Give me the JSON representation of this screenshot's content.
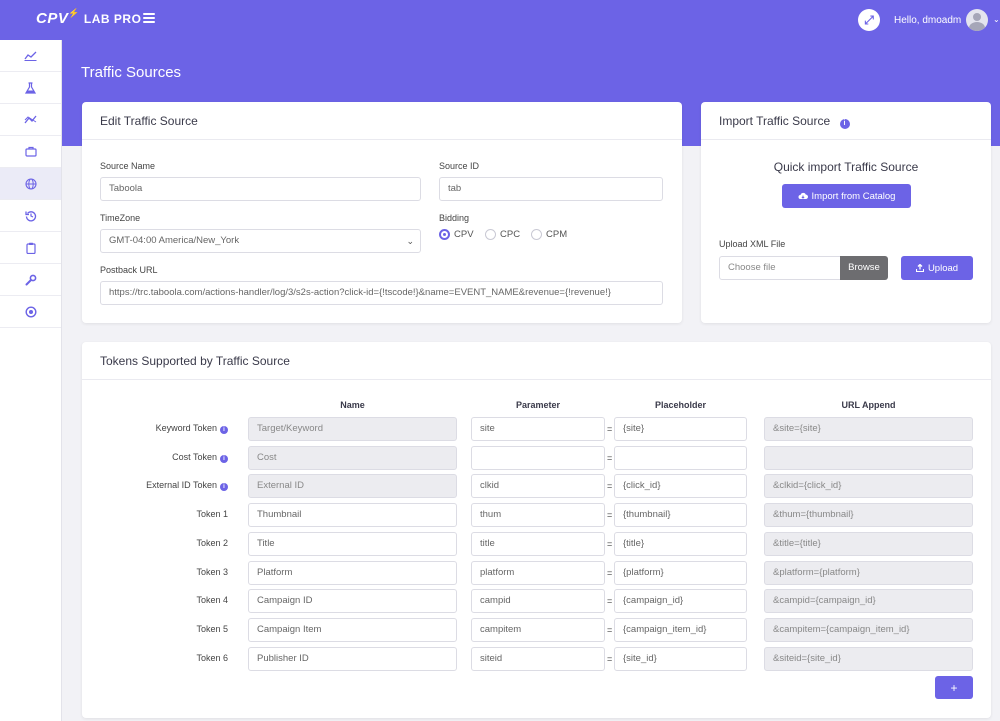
{
  "app": {
    "logo_main": "CPV",
    "logo_sub": "LAB PRO"
  },
  "header": {
    "greeting": "Hello, dmoadm"
  },
  "page": {
    "title": "Traffic Sources"
  },
  "sidebar": {
    "items": [
      {
        "icon": "chart-line-icon"
      },
      {
        "icon": "flask-icon"
      },
      {
        "icon": "trend-icon"
      },
      {
        "icon": "briefcase-icon"
      },
      {
        "icon": "globe-icon"
      },
      {
        "icon": "history-icon"
      },
      {
        "icon": "clipboard-icon"
      },
      {
        "icon": "wrench-icon"
      },
      {
        "icon": "life-ring-icon"
      }
    ]
  },
  "edit": {
    "title": "Edit Traffic Source",
    "source_name_label": "Source Name",
    "source_name_value": "Taboola",
    "source_id_label": "Source ID",
    "source_id_value": "tab",
    "timezone_label": "TimeZone",
    "timezone_value": "GMT-04:00 America/New_York",
    "bidding_label": "Bidding",
    "bidding_options": [
      "CPV",
      "CPC",
      "CPM"
    ],
    "bidding_selected": "CPV",
    "postback_label": "Postback URL",
    "postback_value": "https://trc.taboola.com/actions-handler/log/3/s2s-action?click-id={!tscode!}&name=EVENT_NAME&revenue={!revenue!}"
  },
  "import": {
    "title": "Import Traffic Source",
    "quick_title": "Quick import Traffic Source",
    "catalog_button": "Import from Catalog",
    "upload_label": "Upload XML File",
    "file_placeholder": "Choose file",
    "browse_button": "Browse",
    "upload_button": "Upload"
  },
  "tokens": {
    "title": "Tokens Supported by Traffic Source",
    "columns": [
      "Name",
      "Parameter",
      "Placeholder",
      "URL Append"
    ],
    "rows": [
      {
        "label": "Keyword Token",
        "info": true,
        "name": "Target/Keyword",
        "name_disabled": true,
        "parameter": "site",
        "placeholder": "{site}",
        "append": "&site={site}"
      },
      {
        "label": "Cost Token",
        "info": true,
        "name": "Cost",
        "name_disabled": true,
        "parameter": "",
        "placeholder": "",
        "append": ""
      },
      {
        "label": "External ID Token",
        "info": true,
        "name": "External ID",
        "name_disabled": true,
        "parameter": "clkid",
        "placeholder": "{click_id}",
        "append": "&clkid={click_id}"
      },
      {
        "label": "Token 1",
        "info": false,
        "name": "Thumbnail",
        "name_disabled": false,
        "parameter": "thum",
        "placeholder": "{thumbnail}",
        "append": "&thum={thumbnail}"
      },
      {
        "label": "Token 2",
        "info": false,
        "name": "Title",
        "name_disabled": false,
        "parameter": "title",
        "placeholder": "{title}",
        "append": "&title={title}"
      },
      {
        "label": "Token 3",
        "info": false,
        "name": "Platform",
        "name_disabled": false,
        "parameter": "platform",
        "placeholder": "{platform}",
        "append": "&platform={platform}"
      },
      {
        "label": "Token 4",
        "info": false,
        "name": "Campaign ID",
        "name_disabled": false,
        "parameter": "campid",
        "placeholder": "{campaign_id}",
        "append": "&campid={campaign_id}"
      },
      {
        "label": "Token 5",
        "info": false,
        "name": "Campaign Item",
        "name_disabled": false,
        "parameter": "campitem",
        "placeholder": "{campaign_item_id}",
        "append": "&campitem={campaign_item_id}"
      },
      {
        "label": "Token 6",
        "info": false,
        "name": "Publisher ID",
        "name_disabled": false,
        "parameter": "siteid",
        "placeholder": "{site_id}",
        "append": "&siteid={site_id}"
      }
    ],
    "equals": "=",
    "add_button": "+"
  }
}
